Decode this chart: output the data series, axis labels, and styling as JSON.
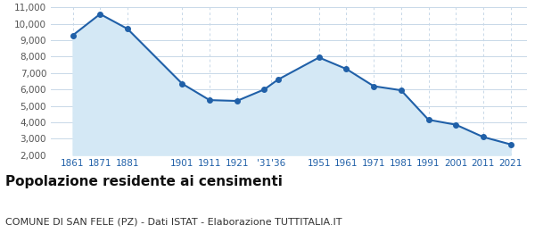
{
  "years": [
    1861,
    1871,
    1881,
    1901,
    1911,
    1921,
    1931,
    1936,
    1951,
    1961,
    1971,
    1981,
    1991,
    2001,
    2011,
    2021
  ],
  "population": [
    9300,
    10600,
    9700,
    6350,
    5350,
    5300,
    6000,
    6600,
    7950,
    7250,
    6200,
    5950,
    4150,
    3850,
    3100,
    2650
  ],
  "x_tick_positions": [
    1861,
    1871,
    1881,
    1901,
    1911,
    1921,
    1933.5,
    1951,
    1961,
    1971,
    1981,
    1991,
    2001,
    2011,
    2021
  ],
  "x_tick_labels": [
    "1861",
    "1871",
    "1881",
    "1901",
    "1911",
    "1921",
    "'31'36",
    "1951",
    "1961",
    "1971",
    "1981",
    "1991",
    "2001",
    "2011",
    "2021"
  ],
  "line_color": "#2060a8",
  "fill_color": "#d4e8f5",
  "marker_color": "#2060a8",
  "background_color": "#ffffff",
  "grid_color": "#c8d8e8",
  "title": "Popolazione residente ai censimenti",
  "subtitle": "COMUNE DI SAN FELE (PZ) - Dati ISTAT - Elaborazione TUTTITALIA.IT",
  "ylim": [
    2000,
    11000
  ],
  "yticks": [
    2000,
    3000,
    4000,
    5000,
    6000,
    7000,
    8000,
    9000,
    10000,
    11000
  ],
  "xlim_left": 1853,
  "xlim_right": 2027,
  "title_fontsize": 11,
  "subtitle_fontsize": 8,
  "tick_fontsize": 7.5,
  "axis_label_color": "#2060a8",
  "ytick_color": "#555555"
}
